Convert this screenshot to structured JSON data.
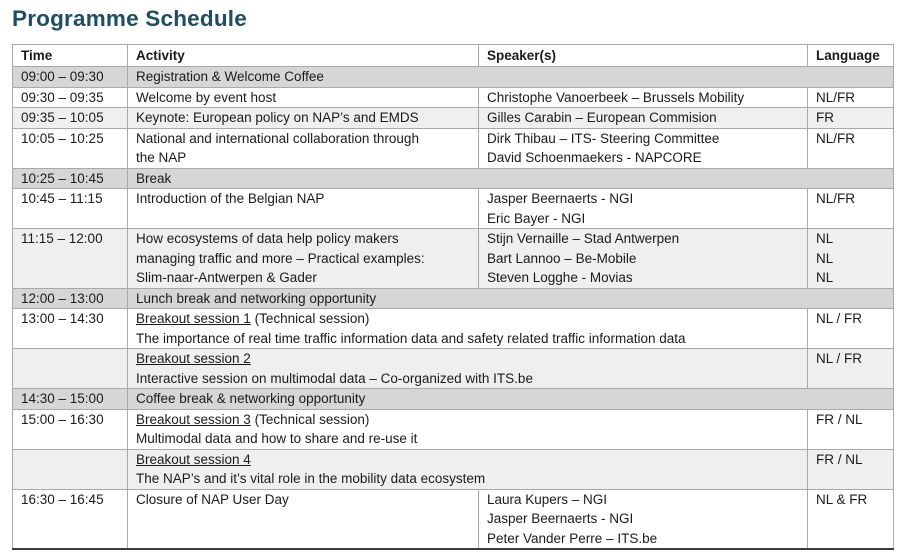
{
  "page_title": "Programme Schedule",
  "table": {
    "headers": [
      "Time",
      "Activity",
      "Speaker(s)",
      "Language"
    ],
    "rows": [
      {
        "kind": "span",
        "shade": "gray",
        "time": "09:00 – 09:30",
        "activity": [
          "Registration & Welcome Coffee"
        ]
      },
      {
        "kind": "session",
        "shade": "none",
        "time": "09:30 – 09:35",
        "activity": [
          "Welcome by event host"
        ],
        "speakers": [
          "Christophe Vanoerbeek – Brussels Mobility"
        ],
        "language": [
          "NL/FR"
        ]
      },
      {
        "kind": "session",
        "shade": "light",
        "time": "09:35 – 10:05",
        "activity": [
          "Keynote: European policy on NAP’s and EMDS"
        ],
        "speakers": [
          "Gilles Carabin – European Commision"
        ],
        "language": [
          "FR"
        ]
      },
      {
        "kind": "session",
        "shade": "none",
        "time": "10:05 – 10:25",
        "activity": [
          "National and international collaboration through",
          "the NAP"
        ],
        "speakers": [
          "Dirk Thibau – ITS- Steering Committee",
          "David Schoenmaekers - NAPCORE"
        ],
        "language": [
          "NL/FR"
        ]
      },
      {
        "kind": "span",
        "shade": "gray",
        "time": "10:25 – 10:45",
        "activity": [
          "Break"
        ]
      },
      {
        "kind": "session",
        "shade": "none",
        "time": "10:45 – 11:15",
        "activity": [
          "Introduction of the Belgian NAP"
        ],
        "speakers": [
          "Jasper Beernaerts - NGI",
          "Eric Bayer - NGI"
        ],
        "language": [
          "NL/FR"
        ]
      },
      {
        "kind": "session",
        "shade": "light",
        "time": "11:15 – 12:00",
        "activity": [
          "How ecosystems of data help policy makers",
          "managing traffic and more – Practical examples:",
          "Slim-naar-Antwerpen & Gader"
        ],
        "speakers": [
          "Stijn Vernaille – Stad Antwerpen",
          "Bart Lannoo – Be-Mobile",
          "Steven Logghe - Movias"
        ],
        "language": [
          "NL",
          "NL",
          "NL"
        ]
      },
      {
        "kind": "span",
        "shade": "gray",
        "time": "12:00 – 13:00",
        "activity": [
          "Lunch break and networking opportunity"
        ]
      },
      {
        "kind": "breakout",
        "shade": "none",
        "time": "13:00 – 14:30",
        "session_title": "Breakout session 1",
        "session_note": " (Technical session)",
        "description": "The importance of real time traffic information data and safety related traffic information data",
        "language": [
          "NL / FR"
        ]
      },
      {
        "kind": "breakout",
        "shade": "light",
        "time": "",
        "session_title": "Breakout session 2",
        "session_note": "",
        "description": "Interactive session on multimodal data – Co-organized with ITS.be",
        "language": [
          "NL / FR"
        ]
      },
      {
        "kind": "span",
        "shade": "gray",
        "time": "14:30 – 15:00",
        "activity": [
          "Coffee break & networking opportunity"
        ]
      },
      {
        "kind": "breakout",
        "shade": "none",
        "time": "15:00 – 16:30",
        "session_title": "Breakout session 3",
        "session_note": " (Technical session)",
        "description": "Multimodal data and how to share and re-use it",
        "language": [
          "FR / NL"
        ]
      },
      {
        "kind": "breakout",
        "shade": "light",
        "time": "",
        "session_title": "Breakout session 4",
        "session_note": "",
        "description": "The NAP’s and it’s vital role in the mobility data ecosystem",
        "language": [
          "FR / NL"
        ]
      },
      {
        "kind": "session",
        "shade": "none",
        "time": "16:30 – 16:45",
        "activity": [
          "Closure of NAP User Day"
        ],
        "speakers": [
          "Laura Kupers – NGI",
          "Jasper Beernaerts - NGI",
          "Peter Vander Perre – ITS.be"
        ],
        "language": [
          "NL & FR"
        ]
      }
    ]
  }
}
